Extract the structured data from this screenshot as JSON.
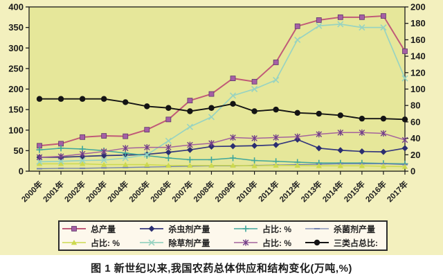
{
  "chart_data": {
    "type": "line",
    "title": "图 1  新世纪以来,我国农药总体供应和结构变化(万吨,%)",
    "x_categories": [
      "2000年",
      "2001年",
      "2002年",
      "2003年",
      "2004年",
      "2005年",
      "2006年",
      "2007年",
      "2008年",
      "2009年",
      "2010年",
      "2011年",
      "2012年",
      "2013年",
      "2014年",
      "2015年",
      "2016年",
      "2017年"
    ],
    "left_axis": {
      "min": 0,
      "max": 400,
      "step": 50,
      "ticks": [
        400,
        350,
        300,
        250,
        200,
        150,
        100,
        50,
        0
      ]
    },
    "right_axis": {
      "min": 0,
      "max": 200,
      "step": 20,
      "ticks": [
        200,
        180,
        160,
        140,
        120,
        100,
        80,
        60,
        40,
        20,
        0
      ]
    },
    "grid": "off",
    "legend_position": "bottom",
    "series": [
      {
        "name": "总产量",
        "axis": "left",
        "marker": "square",
        "line_color": "#c05a78",
        "marker_color": "#a55fa5",
        "values": [
          62,
          67,
          83,
          86,
          85,
          101,
          126,
          172,
          188,
          226,
          218,
          265,
          353,
          368,
          375,
          375,
          378,
          292
        ]
      },
      {
        "name": "杀虫剂产量",
        "axis": "left",
        "marker": "diamond",
        "line_color": "#34377d",
        "marker_color": "#2b2e70",
        "values": [
          34,
          34,
          36,
          38,
          39,
          41,
          46,
          52,
          60,
          61,
          62,
          64,
          77,
          56,
          51,
          48,
          47,
          56
        ]
      },
      {
        "name": "占比: %",
        "axis": "right",
        "marker": "plus",
        "line_color": "#3fa69b",
        "marker_color": "#3fa69b",
        "values": [
          26,
          28,
          27,
          25,
          22,
          19,
          16,
          14,
          14,
          16,
          13,
          12,
          11,
          10,
          10,
          10,
          9.5,
          9
        ]
      },
      {
        "name": "杀菌剂产量",
        "axis": "left",
        "marker": "dash",
        "line_color": "#7282b0",
        "marker_color": "#7282b0",
        "values": [
          6,
          7,
          7,
          8,
          9,
          10,
          11,
          12,
          13,
          13,
          14,
          15,
          16,
          17,
          18,
          18,
          18,
          16
        ]
      },
      {
        "name": "占比: %",
        "axis": "right",
        "marker": "triangle",
        "line_color": "#ccd94f",
        "marker_color": "#ccd94f",
        "values": [
          9,
          9,
          9,
          8,
          8,
          8,
          7,
          7,
          7,
          7,
          6.5,
          7,
          7,
          6.5,
          6.5,
          6.5,
          6,
          5.5
        ]
      },
      {
        "name": "除草剂产量",
        "axis": "right",
        "marker": "x",
        "line_color": "#98d3c1",
        "marker_color": "#98d3c1",
        "values": [
          11.5,
          12,
          13,
          13.5,
          16,
          20,
          37,
          54,
          66,
          92,
          100,
          111,
          160,
          177,
          179,
          175,
          175,
          113
        ]
      },
      {
        "name": "占比: %",
        "axis": "right",
        "marker": "star",
        "line_color": "#a4639c",
        "marker_color": "#713f88",
        "values": [
          17,
          18,
          21,
          24,
          28,
          29,
          29,
          32,
          34,
          41,
          40,
          41,
          42,
          45,
          47,
          47,
          46,
          38
        ]
      },
      {
        "name": "三类占总比:",
        "axis": "right",
        "marker": "circle",
        "line_color": "#141414",
        "marker_color": "#141414",
        "values": [
          88,
          88,
          88,
          88,
          84,
          79,
          77,
          73,
          77,
          82,
          73,
          75,
          71,
          70,
          68,
          64,
          64,
          63
        ]
      }
    ],
    "colors": {
      "outer_bg": "#f3f0be",
      "plot_bg": "#e6e79a",
      "legend_bg": "#fdf8ec",
      "caption_bg": "#ffffff",
      "axis": "#1a1a1a"
    }
  }
}
